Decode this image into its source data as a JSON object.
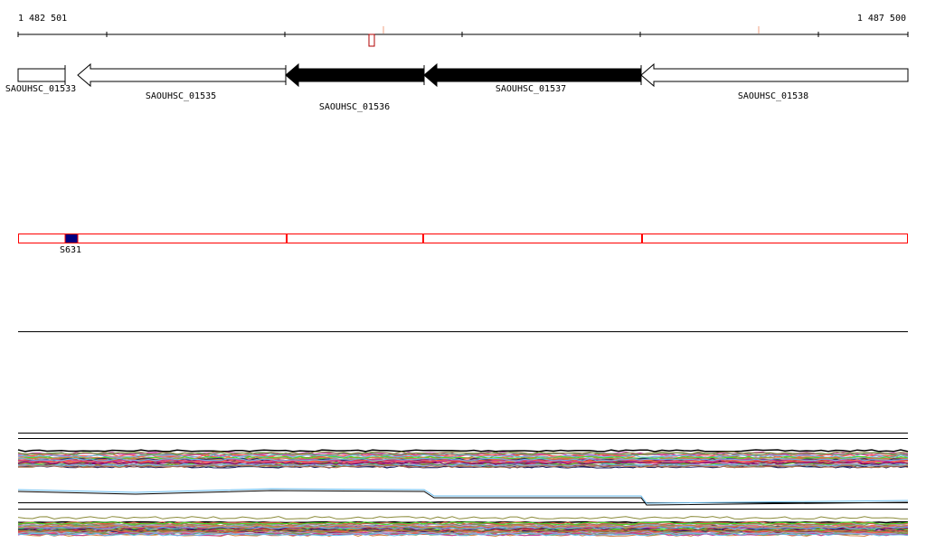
{
  "ruler": {
    "start_label": "1 482 501",
    "end_label": "1 487 500"
  },
  "genes": [
    {
      "name": "SAOUHSC_01533",
      "fill": "white",
      "strand": "none"
    },
    {
      "name": "SAOUHSC_01535",
      "fill": "white",
      "strand": "reverse"
    },
    {
      "name": "SAOUHSC_01536",
      "fill": "black",
      "strand": "reverse"
    },
    {
      "name": "SAOUHSC_01537",
      "fill": "black",
      "strand": "reverse"
    },
    {
      "name": "SAOUHSC_01538",
      "fill": "white",
      "strand": "reverse"
    }
  ],
  "feature_track": {
    "feature_label": "S631",
    "border_color": "#ff0000",
    "feature_color": "#000080"
  },
  "colors": {
    "series": [
      "#e05a3a",
      "#8b8b3a",
      "#c040a0",
      "#66bbee",
      "#44dd22",
      "#a0a0d0",
      "#d08040",
      "#800060",
      "#202060",
      "#ff6060",
      "#b07050",
      "#60a060"
    ]
  }
}
